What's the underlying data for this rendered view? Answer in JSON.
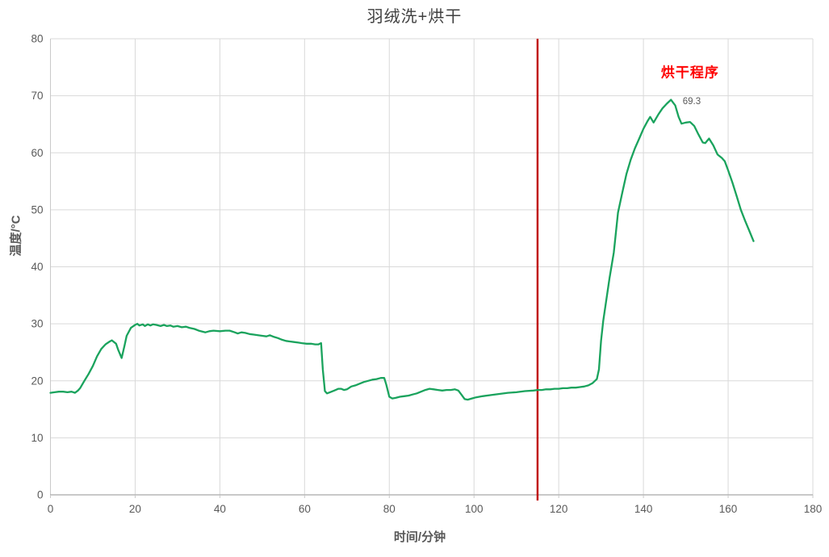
{
  "title": "羽绒洗+烘干",
  "colors": {
    "line_green": "#1aa35d",
    "divider_red": "#c00000",
    "annotation_red": "#fe0000",
    "grid": "#d9d9d9",
    "axis": "#a6a6a6",
    "axis_left": "#c9c9c9",
    "tick_text": "#595959",
    "title_text": "#3f3f3f"
  },
  "chart_data": {
    "type": "line",
    "title": "羽绒洗+烘干",
    "xlabel": "时间/分钟",
    "ylabel": "温度/°C",
    "xlim": [
      0,
      180
    ],
    "ylim": [
      0,
      80
    ],
    "x_ticks": [
      0,
      20,
      40,
      60,
      80,
      100,
      120,
      140,
      160,
      180
    ],
    "y_ticks": [
      0,
      10,
      20,
      30,
      40,
      50,
      60,
      70,
      80
    ],
    "grid": true,
    "legend": "none",
    "vline": {
      "x": 115,
      "color": "#c00000"
    },
    "annotations": [
      {
        "text": "烘干程序",
        "x": 151.0,
        "y": 74.4,
        "color": "#fe0000",
        "bold": true
      },
      {
        "text": "69.3",
        "x": 151.4,
        "y": 68.9,
        "color": "#595959",
        "bold": false
      }
    ],
    "series": [
      {
        "name": "温度",
        "color": "#1aa35d",
        "points": [
          [
            0,
            17.9
          ],
          [
            1,
            18.0
          ],
          [
            2,
            18.1
          ],
          [
            3,
            18.1
          ],
          [
            4,
            18.0
          ],
          [
            5,
            18.1
          ],
          [
            5.8,
            17.9
          ],
          [
            6.5,
            18.3
          ],
          [
            7,
            18.7
          ],
          [
            8,
            20.0
          ],
          [
            9,
            21.2
          ],
          [
            10,
            22.6
          ],
          [
            11,
            24.3
          ],
          [
            12,
            25.6
          ],
          [
            13,
            26.4
          ],
          [
            14,
            26.9
          ],
          [
            14.5,
            27.1
          ],
          [
            15.5,
            26.5
          ],
          [
            16,
            25.4
          ],
          [
            16.8,
            24.0
          ],
          [
            17.5,
            26.2
          ],
          [
            18,
            27.9
          ],
          [
            19,
            29.3
          ],
          [
            20,
            29.8
          ],
          [
            20.5,
            30.0
          ],
          [
            21,
            29.7
          ],
          [
            21.8,
            29.9
          ],
          [
            22.3,
            29.6
          ],
          [
            23,
            29.9
          ],
          [
            23.6,
            29.7
          ],
          [
            24.2,
            29.9
          ],
          [
            25,
            29.8
          ],
          [
            26,
            29.6
          ],
          [
            26.8,
            29.8
          ],
          [
            27.5,
            29.6
          ],
          [
            28.3,
            29.7
          ],
          [
            29,
            29.5
          ],
          [
            30,
            29.6
          ],
          [
            31,
            29.4
          ],
          [
            32,
            29.5
          ],
          [
            32.8,
            29.3
          ],
          [
            34,
            29.1
          ],
          [
            35,
            28.8
          ],
          [
            36.6,
            28.5
          ],
          [
            37.5,
            28.7
          ],
          [
            38.5,
            28.8
          ],
          [
            40,
            28.7
          ],
          [
            41.3,
            28.8
          ],
          [
            42.3,
            28.8
          ],
          [
            43.5,
            28.5
          ],
          [
            44.2,
            28.3
          ],
          [
            45.1,
            28.5
          ],
          [
            46,
            28.4
          ],
          [
            47,
            28.2
          ],
          [
            48,
            28.1
          ],
          [
            49,
            28.0
          ],
          [
            50,
            27.9
          ],
          [
            51,
            27.8
          ],
          [
            51.8,
            28.0
          ],
          [
            52.8,
            27.7
          ],
          [
            53.7,
            27.5
          ],
          [
            54.7,
            27.2
          ],
          [
            55.6,
            27.0
          ],
          [
            56.5,
            26.9
          ],
          [
            57.5,
            26.8
          ],
          [
            58.5,
            26.7
          ],
          [
            59.4,
            26.6
          ],
          [
            60.5,
            26.5
          ],
          [
            61.5,
            26.5
          ],
          [
            62.5,
            26.4
          ],
          [
            63.3,
            26.4
          ],
          [
            63.9,
            26.6
          ],
          [
            64.3,
            22.0
          ],
          [
            64.8,
            18.2
          ],
          [
            65.3,
            17.8
          ],
          [
            66,
            18.0
          ],
          [
            67,
            18.3
          ],
          [
            68,
            18.6
          ],
          [
            68.6,
            18.6
          ],
          [
            69.3,
            18.4
          ],
          [
            70,
            18.5
          ],
          [
            71,
            19.0
          ],
          [
            72,
            19.2
          ],
          [
            73,
            19.5
          ],
          [
            74,
            19.8
          ],
          [
            75,
            20.0
          ],
          [
            76,
            20.2
          ],
          [
            77,
            20.3
          ],
          [
            78,
            20.5
          ],
          [
            78.8,
            20.5
          ],
          [
            79.3,
            19.3
          ],
          [
            80,
            17.2
          ],
          [
            80.7,
            16.9
          ],
          [
            81.5,
            17.0
          ],
          [
            82.5,
            17.2
          ],
          [
            83.5,
            17.3
          ],
          [
            84.5,
            17.4
          ],
          [
            85.5,
            17.6
          ],
          [
            86.5,
            17.8
          ],
          [
            87.5,
            18.1
          ],
          [
            88.5,
            18.4
          ],
          [
            89.5,
            18.6
          ],
          [
            90.5,
            18.5
          ],
          [
            91.5,
            18.4
          ],
          [
            92.5,
            18.3
          ],
          [
            93.5,
            18.4
          ],
          [
            94.5,
            18.4
          ],
          [
            95.5,
            18.5
          ],
          [
            96.3,
            18.3
          ],
          [
            97,
            17.6
          ],
          [
            97.8,
            16.8
          ],
          [
            98.5,
            16.7
          ],
          [
            99.5,
            16.9
          ],
          [
            100.5,
            17.1
          ],
          [
            102,
            17.3
          ],
          [
            104,
            17.5
          ],
          [
            106,
            17.7
          ],
          [
            108,
            17.9
          ],
          [
            110,
            18.0
          ],
          [
            112,
            18.2
          ],
          [
            114,
            18.3
          ],
          [
            115,
            18.4
          ],
          [
            116,
            18.4
          ],
          [
            117,
            18.5
          ],
          [
            118,
            18.5
          ],
          [
            119,
            18.6
          ],
          [
            120,
            18.6
          ],
          [
            121,
            18.7
          ],
          [
            122,
            18.7
          ],
          [
            123,
            18.8
          ],
          [
            124,
            18.8
          ],
          [
            125,
            18.9
          ],
          [
            126,
            19.0
          ],
          [
            127,
            19.2
          ],
          [
            128,
            19.6
          ],
          [
            129,
            20.3
          ],
          [
            129.5,
            22.0
          ],
          [
            130,
            27.0
          ],
          [
            130.5,
            30.5
          ],
          [
            131,
            33.0
          ],
          [
            132,
            38.0
          ],
          [
            133,
            42.5
          ],
          [
            134,
            49.5
          ],
          [
            135,
            53.0
          ],
          [
            136,
            56.3
          ],
          [
            137,
            58.8
          ],
          [
            138,
            60.8
          ],
          [
            139,
            62.5
          ],
          [
            140,
            64.2
          ],
          [
            141,
            65.6
          ],
          [
            141.6,
            66.3
          ],
          [
            142.4,
            65.3
          ],
          [
            143.5,
            66.7
          ],
          [
            144.5,
            67.8
          ],
          [
            145.5,
            68.6
          ],
          [
            146.5,
            69.3
          ],
          [
            147.5,
            68.3
          ],
          [
            148.3,
            66.3
          ],
          [
            149,
            65.1
          ],
          [
            150,
            65.3
          ],
          [
            151,
            65.4
          ],
          [
            152,
            64.7
          ],
          [
            153,
            63.2
          ],
          [
            154,
            61.8
          ],
          [
            154.6,
            61.7
          ],
          [
            155.5,
            62.5
          ],
          [
            156.5,
            61.3
          ],
          [
            157.5,
            59.7
          ],
          [
            158.5,
            59.1
          ],
          [
            159.2,
            58.5
          ],
          [
            160,
            56.9
          ],
          [
            161,
            54.8
          ],
          [
            162,
            52.4
          ],
          [
            163,
            50.0
          ],
          [
            164,
            48.1
          ],
          [
            165,
            46.3
          ],
          [
            166,
            44.5
          ]
        ]
      }
    ]
  }
}
